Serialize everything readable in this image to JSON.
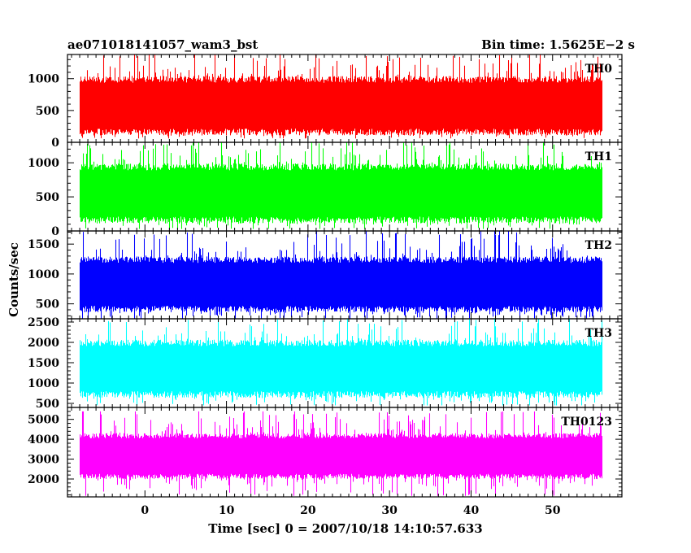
{
  "chart_data": {
    "type": "line",
    "title_left": "ae071018141057_wam3_bst",
    "title_right": "Bin time: 1.5625E−2 s",
    "ylabel": "Counts/sec",
    "xlabel": "Time [sec] 0 = 2007/10/18 14:10:57.633",
    "xlim": [
      -9.5,
      58.5
    ],
    "x_data_range": [
      -8,
      56
    ],
    "bin_time": 0.015625,
    "x_ticks": [
      0,
      10,
      20,
      30,
      40,
      50
    ],
    "x_tick_labels": [
      "0",
      "10",
      "20",
      "30",
      "40",
      "50"
    ],
    "grid": false,
    "panels": [
      {
        "name": "TH0",
        "color": "#ff0000",
        "ylim": [
          0,
          1380
        ],
        "y_ticks": [
          0,
          500,
          1000
        ],
        "y_tick_labels": [
          "0",
          "500",
          "1000"
        ],
        "mean": 600,
        "envelope": [
          150,
          1000
        ],
        "range": [
          60,
          1380
        ]
      },
      {
        "name": "TH1",
        "color": "#00ff00",
        "ylim": [
          0,
          1300
        ],
        "y_ticks": [
          0,
          500,
          1000
        ],
        "y_tick_labels": [
          "0",
          "500",
          "1000"
        ],
        "mean": 550,
        "envelope": [
          150,
          950
        ],
        "range": [
          30,
          1300
        ]
      },
      {
        "name": "TH2",
        "color": "#0000ff",
        "ylim": [
          250,
          1720
        ],
        "y_ticks": [
          500,
          1000,
          1500
        ],
        "y_tick_labels": [
          "500",
          "1000",
          "1500"
        ],
        "mean": 800,
        "envelope": [
          400,
          1250
        ],
        "range": [
          250,
          1720
        ]
      },
      {
        "name": "TH3",
        "color": "#00ffff",
        "ylim": [
          400,
          2580
        ],
        "y_ticks": [
          500,
          1000,
          1500,
          2000,
          2500
        ],
        "y_tick_labels": [
          "500",
          "1000",
          "1500",
          "2000",
          "2500"
        ],
        "mean": 1400,
        "envelope": [
          700,
          2000
        ],
        "range": [
          450,
          2580
        ]
      },
      {
        "name": "TH0123",
        "color": "#ff00ff",
        "ylim": [
          1100,
          5600
        ],
        "y_ticks": [
          2000,
          3000,
          4000,
          5000
        ],
        "y_tick_labels": [
          "2000",
          "3000",
          "4000",
          "5000"
        ],
        "mean": 3100,
        "envelope": [
          2100,
          4200
        ],
        "range": [
          1150,
          5400
        ]
      }
    ]
  }
}
